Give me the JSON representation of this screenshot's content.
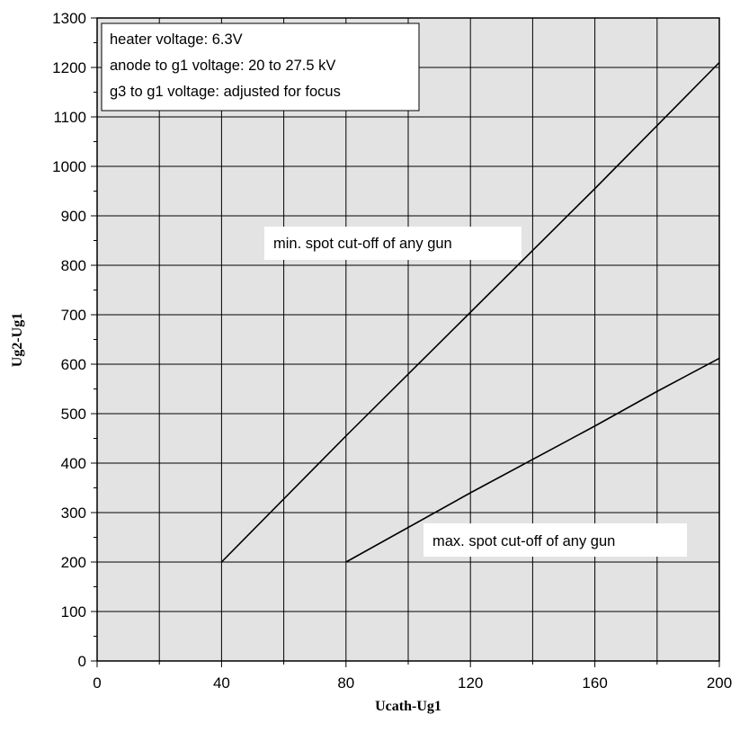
{
  "chart_data": {
    "type": "line",
    "title": "",
    "xlabel": "Ucath-Ug1",
    "ylabel": "Ug2-Ug1",
    "xlim": [
      0,
      200
    ],
    "ylim": [
      0,
      1300
    ],
    "x_ticks": [
      0,
      40,
      80,
      120,
      160,
      200
    ],
    "y_ticks": [
      0,
      100,
      200,
      300,
      400,
      500,
      600,
      700,
      800,
      900,
      1000,
      1100,
      1200,
      1300
    ],
    "x_tick_labels": [
      "0",
      "40",
      "80",
      "120",
      "160",
      "200"
    ],
    "y_tick_labels": [
      "0",
      "100",
      "200",
      "300",
      "400",
      "500",
      "600",
      "700",
      "800",
      "900",
      "1000",
      "1100",
      "1200",
      "1300"
    ],
    "grid": true,
    "series": [
      {
        "name": "min. spot cut-off of any gun",
        "x": [
          40,
          80,
          120,
          160,
          200
        ],
        "y": [
          200,
          455,
          705,
          955,
          1210
        ]
      },
      {
        "name": "max. spot cut-off of any gun",
        "x": [
          80,
          120,
          160,
          180,
          200
        ],
        "y": [
          200,
          340,
          475,
          545,
          612
        ]
      }
    ],
    "info_box": [
      "heater voltage: 6.3V",
      "anode to g1 voltage: 20 to 27.5 kV",
      "g3 to g1 voltage: adjusted for focus"
    ]
  }
}
